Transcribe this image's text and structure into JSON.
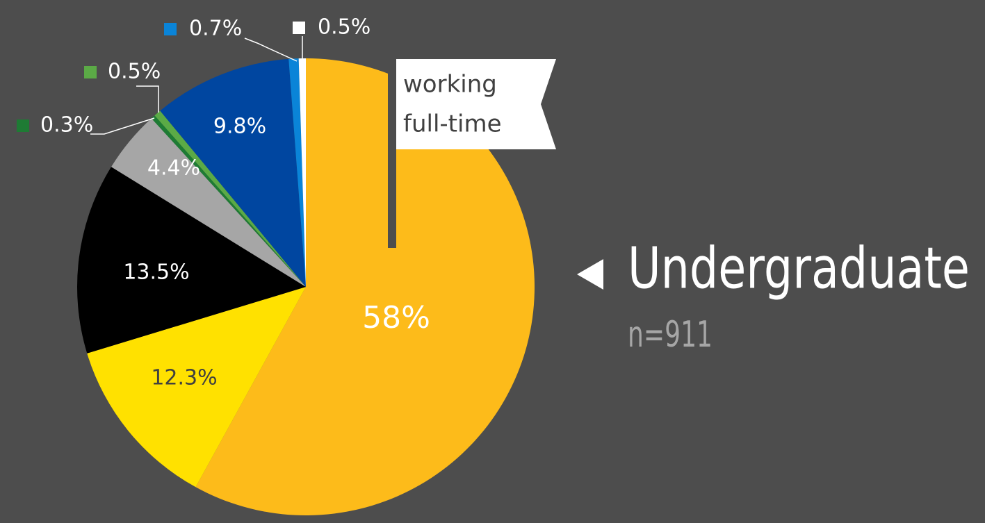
{
  "chart_data": {
    "type": "pie",
    "title": "Undergraduate",
    "subtitle": "n=911",
    "annotation": [
      "working",
      "full-time"
    ],
    "values": [
      58,
      12.3,
      13.5,
      4.4,
      0.3,
      0.5,
      9.8,
      0.7,
      0.5
    ],
    "value_labels": [
      "58%",
      "12.3%",
      "13.5%",
      "4.4%",
      "0.3%",
      "0.5%",
      "9.8%",
      "0.7%",
      "0.5%"
    ],
    "colors": [
      "#fdbb1a",
      "#ffe100",
      "#000000",
      "#a6a6a6",
      "#1e7b34",
      "#5baa46",
      "#0046a0",
      "#0a84d8",
      "#ffffff"
    ],
    "start_angle": 0,
    "direction": "clockwise"
  }
}
